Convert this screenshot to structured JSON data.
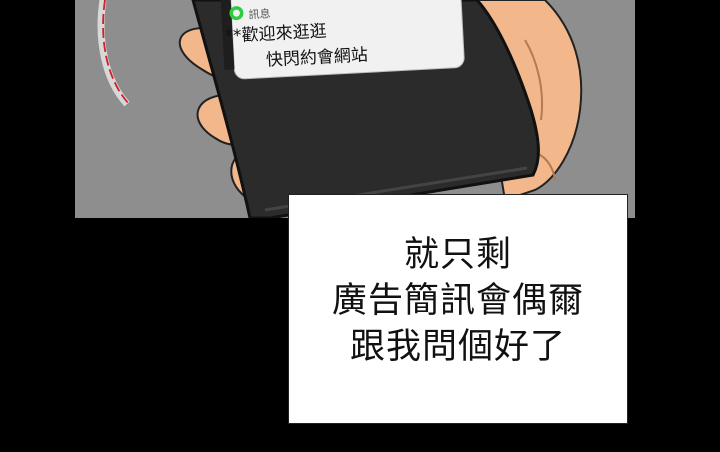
{
  "notification": {
    "app_label": "訊息",
    "line1": "**歡迎來逛逛",
    "line2": "快閃約會網站",
    "icon": "chat-bubble-icon"
  },
  "caption": {
    "lines": [
      "就只剩",
      "廣告簡訊會偶爾",
      "跟我問個好了"
    ]
  },
  "colors": {
    "background": "#000000",
    "panel_bg": "#8e8e8e",
    "phone": "#2b2b2b",
    "skin": "#f2b78a",
    "icon_green": "#2ecc40",
    "speech_box": "#ffffff"
  }
}
